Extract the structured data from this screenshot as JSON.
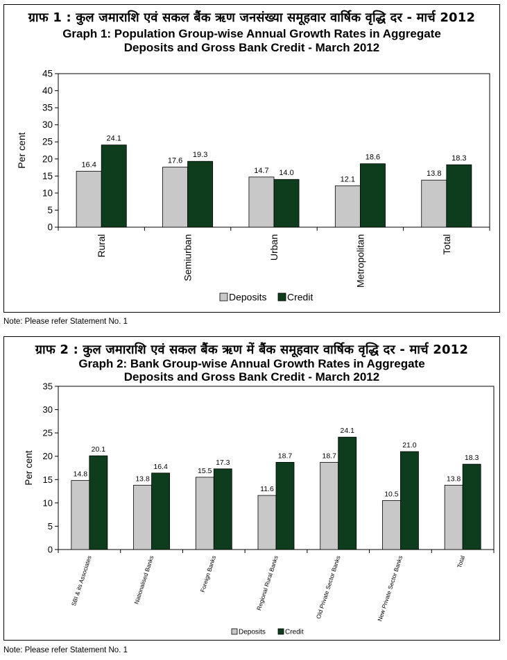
{
  "graph1": {
    "title_hi": "ग्राफ 1 : कुल जमाराशि एवं सकल बैंक ऋण जनसंख्या समूहवार वार्षिक वृद्धि दर - मार्च 2012",
    "title_en_line1": "Graph 1: Population Group-wise  Annual Growth Rates in Aggregate",
    "title_en_line2": "Deposits and Gross Bank Credit - March 2012",
    "note": "Note:  Please refer Statement No. 1"
  },
  "graph2": {
    "title_hi": "ग्राफ 2 : कुल जमाराशि एवं सकल बैंक ऋण में बैंक समूहवार वार्षिक वृद्धि दर - मार्च 2012",
    "title_en_line1": "Graph 2: Bank Group-wise  Annual Growth Rates in Aggregate",
    "title_en_line2": "Deposits and Gross Bank Credit - March 2012",
    "note": "Note:  Please refer Statement No. 1"
  },
  "colors": {
    "deposits": "#c8c8c8",
    "credit": "#0d3d1c"
  },
  "chart_data": [
    {
      "type": "bar",
      "title": "Graph 1: Population Group-wise  Annual Growth Rates in Aggregate Deposits and Gross Bank Credit - March 2012",
      "categories": [
        "Rural",
        "Semiurban",
        "Urban",
        "Metropolitan",
        "Total"
      ],
      "series": [
        {
          "name": "Deposits",
          "values": [
            16.4,
            17.6,
            14.7,
            12.1,
            13.8
          ]
        },
        {
          "name": "Credit",
          "values": [
            24.1,
            19.3,
            14.0,
            18.6,
            18.3
          ]
        }
      ],
      "ylabel": "Per cent",
      "ylim": [
        0,
        45
      ],
      "yticks": [
        0,
        5,
        10,
        15,
        20,
        25,
        30,
        35,
        40,
        45
      ],
      "grid": false,
      "legend": "bottom"
    },
    {
      "type": "bar",
      "title": "Graph 2: Bank Group-wise  Annual Growth Rates in Aggregate Deposits and Gross Bank Credit - March 2012",
      "categories": [
        "SBI & its Associates",
        "Nationalised Banks",
        "Foreign Banks",
        "Regional Rural Banks",
        "Old Private Sector Banks",
        "New Private Sector Banks",
        "Total"
      ],
      "series": [
        {
          "name": "Deposits",
          "values": [
            14.8,
            13.8,
            15.5,
            11.6,
            18.7,
            10.5,
            13.8
          ]
        },
        {
          "name": "Credit",
          "values": [
            20.1,
            16.4,
            17.3,
            18.7,
            24.1,
            21.0,
            18.3
          ]
        }
      ],
      "ylabel": "Per cent",
      "ylim": [
        0,
        35
      ],
      "yticks": [
        0,
        5,
        10,
        15,
        20,
        25,
        30,
        35
      ],
      "grid": false,
      "legend": "bottom"
    }
  ]
}
